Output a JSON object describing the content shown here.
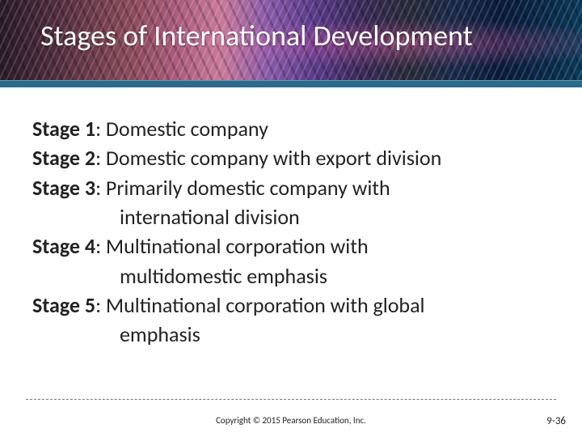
{
  "title": "Stages of International Development",
  "stages": [
    {
      "label": "Stage 1",
      "text": ": Domestic company",
      "cont": ""
    },
    {
      "label": "Stage 2",
      "text": ": Domestic company with export division",
      "cont": ""
    },
    {
      "label": "Stage 3",
      "text": ": Primarily domestic company with",
      "cont": "international division"
    },
    {
      "label": "Stage 4",
      "text": ": Multinational corporation with",
      "cont": "multidomestic emphasis"
    },
    {
      "label": "Stage 5",
      "text": ": Multinational corporation with global",
      "cont": "emphasis"
    }
  ],
  "copyright": "Copyright © 2015 Pearson Education, Inc.",
  "slideNumber": "9-36"
}
